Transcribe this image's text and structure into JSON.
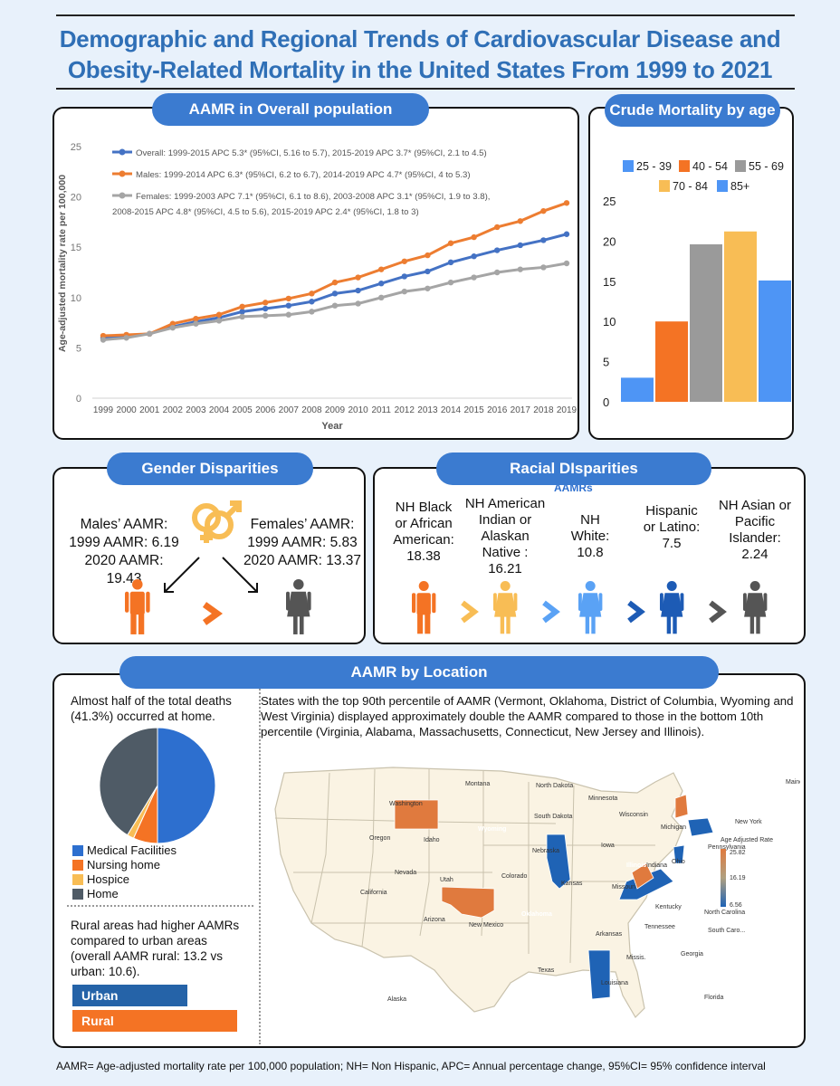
{
  "title": "Demographic and Regional Trends of Cardiovascular Disease and Obesity-Related Mortality in the United States From 1999 to 2021",
  "aamr_overall": {
    "header": "AAMR in Overall population",
    "chart_data": {
      "type": "line",
      "title": "",
      "xlabel": "Year",
      "ylabel": "Age-adjusted mortality rate per 100,000",
      "ylim": [
        0,
        25
      ],
      "yticks": [
        "0",
        "5",
        "10",
        "15",
        "20",
        "25"
      ],
      "x": [
        "1999",
        "2000",
        "2001",
        "2002",
        "2003",
        "2004",
        "2005",
        "2006",
        "2007",
        "2008",
        "2009",
        "2010",
        "2011",
        "2012",
        "2013",
        "2014",
        "2015",
        "2016",
        "2017",
        "2018",
        "2019"
      ],
      "series": [
        {
          "name": "Overall: 1999-2015 APC 5.3* (95%CI, 5.16 to 5.7), 2015-2019 APC 3.7* (95%CI, 2.1 to 4.5)",
          "color": "#4472c4",
          "values": [
            6.0,
            6.2,
            6.4,
            7.1,
            7.6,
            8.0,
            8.6,
            8.9,
            9.2,
            9.6,
            10.4,
            10.7,
            11.4,
            12.1,
            12.6,
            13.5,
            14.1,
            14.7,
            15.2,
            15.7,
            16.3
          ]
        },
        {
          "name": "Males: 1999-2014 APC 6.3* (95%CI, 6.2 to 6.7), 2014-2019 APC 4.7* (95%CI, 4 to 5.3)",
          "color": "#ed7d31",
          "values": [
            6.2,
            6.3,
            6.4,
            7.4,
            7.9,
            8.3,
            9.1,
            9.5,
            9.9,
            10.4,
            11.5,
            12.0,
            12.8,
            13.6,
            14.2,
            15.4,
            16.0,
            17.0,
            17.6,
            18.6,
            19.4
          ]
        },
        {
          "name_line1": "Females: 1999-2003 APC 7.1* (95%CI, 6.1 to 8.6), 2003-2008 APC 3.1* (95%CI, 1.9 to 3.8),",
          "name_line2": "2008-2015 APC 4.8* (95%CI, 4.5 to 5.6), 2015-2019 APC 2.4* (95%CI, 1.8 to 3)",
          "color": "#a5a5a5",
          "values": [
            5.8,
            6.0,
            6.4,
            7.0,
            7.4,
            7.7,
            8.1,
            8.2,
            8.3,
            8.6,
            9.2,
            9.4,
            10.0,
            10.6,
            10.9,
            11.5,
            12.0,
            12.5,
            12.8,
            13.0,
            13.4
          ]
        }
      ]
    }
  },
  "crude_age": {
    "header": "Crude Mortality by age",
    "chart_data": {
      "type": "bar",
      "categories": [
        "25 - 39",
        "40 - 54",
        "55 - 69",
        "70 - 84",
        "85+"
      ],
      "values": [
        3.0,
        10.0,
        19.6,
        21.2,
        15.1
      ],
      "colors": [
        "#4e95f5",
        "#f47324",
        "#9a9a9a",
        "#f8bd55",
        "#4e95f5"
      ],
      "ylim": [
        0,
        25
      ],
      "yticks": [
        "0",
        "5",
        "10",
        "15",
        "20",
        "25"
      ]
    }
  },
  "gender": {
    "header": "Gender Disparities",
    "males": [
      "Males’ AAMR:",
      "1999 AAMR: 6.19",
      "2020 AAMR: 19.43"
    ],
    "females": [
      "Females’ AAMR:",
      "1999 AAMR: 5.83",
      "2020 AAMR: 13.37"
    ],
    "male_color": "#f47324",
    "female_color": "#555555"
  },
  "racial": {
    "header": "Racial DIsparities",
    "subheader": "AAMRs",
    "groups": [
      {
        "label": "NH Black\nor African\nAmerican:\n18.38",
        "color": "#f47324"
      },
      {
        "label": "NH American\nIndian or\nAlaskan\nNative :\n16.21",
        "color": "#f8bd55"
      },
      {
        "label": "NH\nWhite:\n10.8",
        "color": "#5aa2f5"
      },
      {
        "label": "Hispanic\nor Latino:\n7.5",
        "color": "#1d5bb5"
      },
      {
        "label": "NH Asian or\nPacific\nIslander:\n2.24",
        "color": "#555555"
      }
    ]
  },
  "location": {
    "header": "AAMR  by Location",
    "home_text": "Almost half of the total deaths (41.3%) occurred at home.",
    "pie": {
      "type": "pie",
      "labels": [
        "Medical Facilities",
        "Nursing home",
        "Hospice",
        "Home"
      ],
      "values": [
        50.0,
        6.8,
        1.9,
        41.3
      ],
      "colors": [
        "#2d6fcf",
        "#f47324",
        "#f8bd55",
        "#4f5b66"
      ]
    },
    "rural_text": "Rural areas had higher AAMRs compared to urban areas (overall AAMR rural: 13.2 vs urban: 10.6).",
    "urban_label": "Urban",
    "rural_label": "Rural",
    "urban_value": 10.6,
    "rural_value": 13.2,
    "states_text": "States with the top 90th percentile of AAMR (Vermont, Oklahoma, District of Columbia, Wyoming and West Virginia)  displayed approximately double the AAMR compared to those in the bottom 10th percentile (Virginia, Alabama, Massachusetts, Connecticut, New Jersey and Illinois).",
    "map_legend": {
      "title": "Age Adjusted Rate",
      "max": "25.82",
      "mid": "16.19",
      "min": "6.56"
    },
    "states": [
      "Washington",
      "Montana",
      "North Dakota",
      "Minnesota",
      "Oregon",
      "Idaho",
      "South Dakota",
      "Wisconsin",
      "Michigan",
      "Wyoming",
      "Iowa",
      "Nebraska",
      "New York",
      "Maine",
      "Nevada",
      "Utah",
      "Colorado",
      "Kansas",
      "Missouri",
      "Illinois",
      "Indiana",
      "Ohio",
      "Pennsylvania",
      "California",
      "Arizona",
      "New Mexico",
      "Oklahoma",
      "Kentucky",
      "Tennessee",
      "North Carolina",
      "Arkansas",
      "Texas",
      "Louisiana",
      "Missis.",
      "Alabama",
      "Georgia",
      "South Caro...",
      "Florida",
      "Alaska",
      "Virginia",
      "We s...",
      "V..."
    ]
  },
  "footer": "AAMR= Age-adjusted mortality rate per 100,000 population; NH= Non Hispanic, APC= Annual percentage change, 95%CI= 95% confidence interval"
}
